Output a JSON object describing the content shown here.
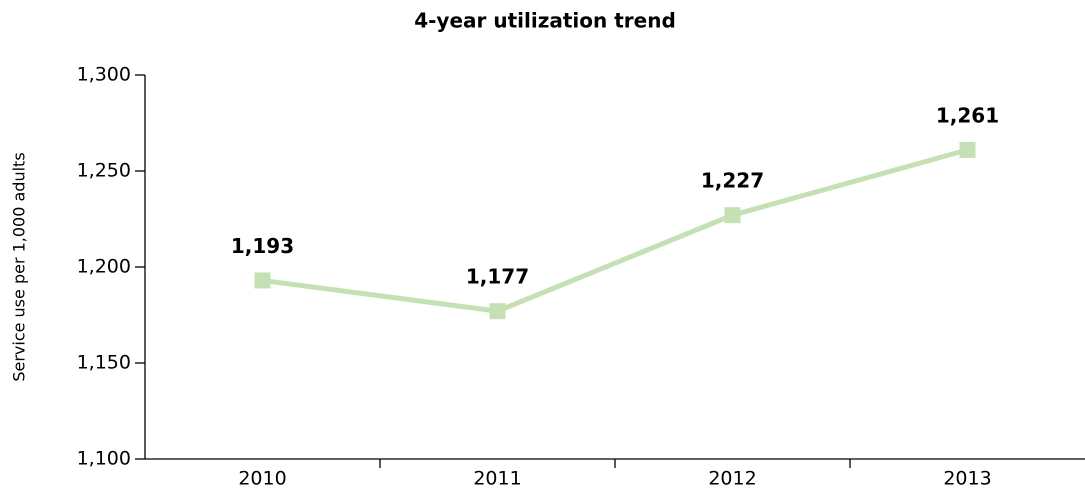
{
  "chart_data": {
    "type": "line",
    "title": "4-year utilization trend",
    "y_label": "Service use per 1,000 adults",
    "categories": [
      "2010",
      "2011",
      "2012",
      "2013"
    ],
    "values": [
      1193,
      1177,
      1227,
      1261
    ],
    "value_labels": [
      "1,193",
      "1,177",
      "1,227",
      "1,261"
    ],
    "color": "#c5e0b4",
    "ylim": [
      1100,
      1300
    ],
    "yticks": [
      {
        "value": 1100,
        "label": "1,100"
      },
      {
        "value": 1150,
        "label": "1,150"
      },
      {
        "value": 1200,
        "label": "1,200"
      },
      {
        "value": 1250,
        "label": "1,250"
      },
      {
        "value": 1300,
        "label": "1,300"
      }
    ]
  }
}
